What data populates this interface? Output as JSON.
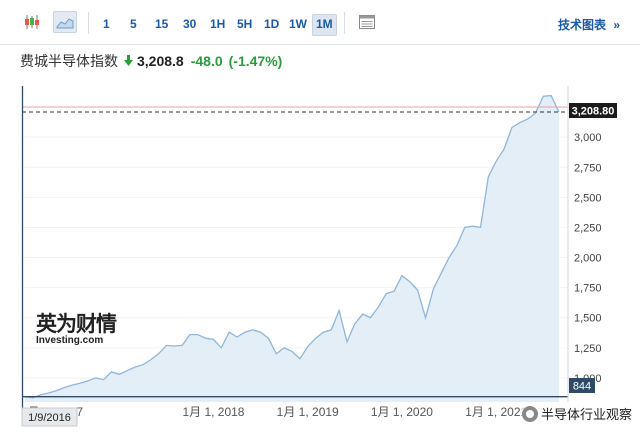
{
  "toolbar": {
    "timeframes": [
      "1",
      "5",
      "15",
      "30",
      "1H",
      "5H",
      "1D",
      "1W",
      "1M"
    ],
    "active_timeframe": "1M",
    "tech_chart_link": "技术图表",
    "tech_chart_arrow": "»"
  },
  "header": {
    "title": "费城半导体指数",
    "price": "3,208.8",
    "change": "-48.0",
    "change_pct": "(-1.47%)"
  },
  "chart_data": {
    "type": "area",
    "x": [
      "2016-01",
      "2016-02",
      "2016-03",
      "2016-04",
      "2016-05",
      "2016-06",
      "2016-07",
      "2016-08",
      "2016-09",
      "2016-10",
      "2016-11",
      "2016-12",
      "2017-01",
      "2017-02",
      "2017-03",
      "2017-04",
      "2017-05",
      "2017-06",
      "2017-07",
      "2017-08",
      "2017-09",
      "2017-10",
      "2017-11",
      "2017-12",
      "2018-01",
      "2018-02",
      "2018-03",
      "2018-04",
      "2018-05",
      "2018-06",
      "2018-07",
      "2018-08",
      "2018-09",
      "2018-10",
      "2018-11",
      "2018-12",
      "2019-01",
      "2019-02",
      "2019-03",
      "2019-04",
      "2019-05",
      "2019-06",
      "2019-07",
      "2019-08",
      "2019-09",
      "2019-10",
      "2019-11",
      "2019-12",
      "2020-01",
      "2020-02",
      "2020-03",
      "2020-04",
      "2020-05",
      "2020-06",
      "2020-07",
      "2020-08",
      "2020-09",
      "2020-10",
      "2020-11",
      "2020-12",
      "2021-01",
      "2021-02",
      "2021-03",
      "2021-04",
      "2021-05",
      "2021-06"
    ],
    "values": [
      844,
      835,
      860,
      875,
      895,
      920,
      940,
      955,
      975,
      1000,
      985,
      1050,
      1030,
      1060,
      1090,
      1110,
      1150,
      1200,
      1270,
      1265,
      1270,
      1360,
      1360,
      1330,
      1320,
      1250,
      1380,
      1340,
      1380,
      1400,
      1380,
      1330,
      1200,
      1250,
      1220,
      1160,
      1260,
      1330,
      1380,
      1400,
      1560,
      1300,
      1450,
      1530,
      1500,
      1590,
      1700,
      1720,
      1850,
      1800,
      1730,
      1500,
      1740,
      1870,
      2000,
      2100,
      2250,
      2260,
      2250,
      2670,
      2800,
      2900,
      3080,
      3120,
      3150,
      3200
    ],
    "last_points": [
      {
        "x": "2021-07",
        "y": 3340
      },
      {
        "x": "2021-08",
        "y": 3345
      },
      {
        "x": "2021-09",
        "y": 3208.8
      }
    ],
    "ylim": [
      800,
      3400
    ],
    "y_ticks": [
      {
        "label": "1,000",
        "v": 1000
      },
      {
        "label": "1,250",
        "v": 1250
      },
      {
        "label": "1,500",
        "v": 1500
      },
      {
        "label": "1,750",
        "v": 1750
      },
      {
        "label": "2,000",
        "v": 2000
      },
      {
        "label": "2,250",
        "v": 2250
      },
      {
        "label": "2,500",
        "v": 2500
      },
      {
        "label": "2,750",
        "v": 2750
      },
      {
        "label": "3,000",
        "v": 3000
      }
    ],
    "x_ticks": [
      {
        "label": "1月 1, 2018",
        "x": "2018-01"
      },
      {
        "label": "1月 1, 2019",
        "x": "2019-01"
      },
      {
        "label": "1月 1, 2020",
        "x": "2020-01"
      },
      {
        "label": "1月 1, 2021",
        "x": "2021-01"
      }
    ],
    "last_price_label": "3,208.80",
    "reference_value": 3250,
    "crosshair_value_label": "844",
    "crosshair_date_label": "1/9/2016",
    "crosshair_x_label": "1月 1, 2017",
    "colors": {
      "line": "#8fb6d8",
      "fill": "#e4eef7",
      "ref_line": "#e8a0a0",
      "last_line": "#333333",
      "crosshair": "#2e4a66"
    }
  },
  "brand_logo_text": "英为财情",
  "brand_sub_text": "Investing.com",
  "watermark_text": "半导体行业观察"
}
